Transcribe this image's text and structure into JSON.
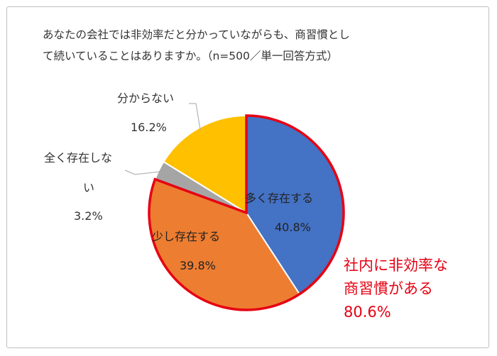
{
  "title_line1": "あなたの会社では非効率だと分かっていながらも、商習慣とし",
  "title_line2": "て続いていることはありますか。（n=500／単一回答方式）",
  "callout": {
    "line1": "社内に非効率な",
    "line2": "商習慣がある",
    "line3": "80.6%",
    "color": "#e60012"
  },
  "chart_data": {
    "type": "pie",
    "title": "あなたの会社では非効率だと分かっていながらも、商習慣として続いていることはありますか。（n=500／単一回答方式）",
    "start_angle_deg": 0,
    "direction": "clockwise",
    "slices": [
      {
        "label": "多く存在する",
        "value": 40.8,
        "value_label": "40.8%",
        "color": "#4472c4",
        "highlighted": true
      },
      {
        "label": "少し存在する",
        "value": 39.8,
        "value_label": "39.8%",
        "color": "#ed7d31",
        "highlighted": true
      },
      {
        "label_lines": [
          "全く存在しな",
          "い"
        ],
        "label": "全く存在しない",
        "value": 3.2,
        "value_label": "3.2%",
        "color": "#a5a5a5",
        "highlighted": false
      },
      {
        "label": "分からない",
        "value": 16.2,
        "value_label": "16.2%",
        "color": "#ffc000",
        "highlighted": false
      }
    ],
    "highlight_outline_color": "#e60012"
  }
}
